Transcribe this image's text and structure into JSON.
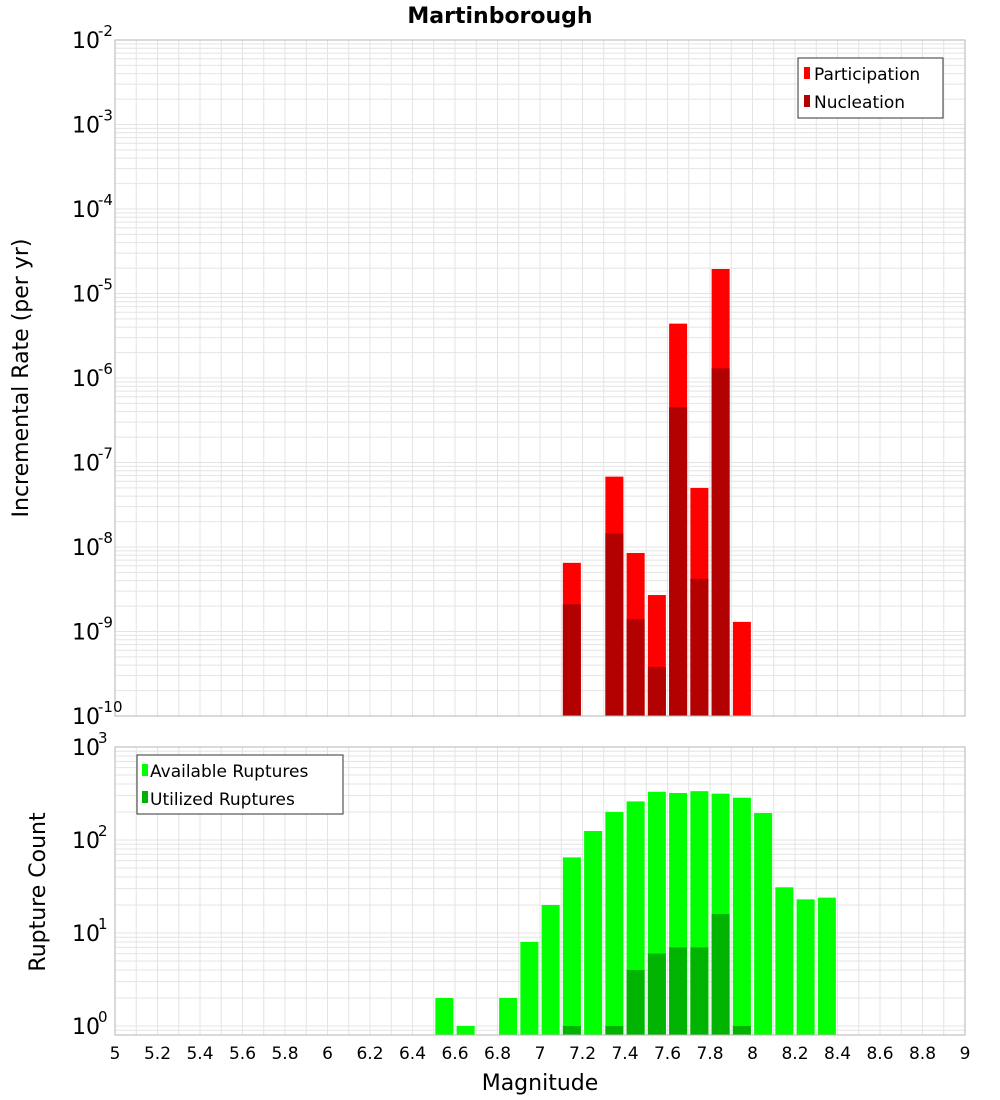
{
  "title": "Martinborough",
  "colors": {
    "participation": "#ff0000",
    "nucleation": "#b30000",
    "available": "#00ff00",
    "utilized": "#00b300",
    "grid": "#e4e4e4",
    "frame": "#b4b4b4"
  },
  "chart_data": [
    {
      "type": "bar",
      "ylabel": "Incremental Rate (per yr)",
      "yscale": "log",
      "ylim": [
        1e-10,
        0.01
      ],
      "xlim": [
        5,
        9
      ],
      "grid": true,
      "legend_position": "top-right",
      "y_tick_labels": [
        {
          "base": "10",
          "exp": "-10"
        },
        {
          "base": "10",
          "exp": "-9"
        },
        {
          "base": "10",
          "exp": "-8"
        },
        {
          "base": "10",
          "exp": "-7"
        },
        {
          "base": "10",
          "exp": "-6"
        },
        {
          "base": "10",
          "exp": "-5"
        },
        {
          "base": "10",
          "exp": "-4"
        },
        {
          "base": "10",
          "exp": "-3"
        },
        {
          "base": "10",
          "exp": "-2"
        }
      ],
      "series": [
        {
          "name": "Participation",
          "color": "#ff0000",
          "points": [
            [
              7.15,
              6.5e-09
            ],
            [
              7.35,
              6.8e-08
            ],
            [
              7.45,
              8.5e-09
            ],
            [
              7.55,
              2.7e-09
            ],
            [
              7.65,
              4.4e-06
            ],
            [
              7.75,
              5e-08
            ],
            [
              7.85,
              1.95e-05
            ],
            [
              7.95,
              1.3e-09
            ]
          ]
        },
        {
          "name": "Nucleation",
          "color": "#b30000",
          "points": [
            [
              7.15,
              2.1e-09
            ],
            [
              7.35,
              1.45e-08
            ],
            [
              7.45,
              1.4e-09
            ],
            [
              7.55,
              3.8e-10
            ],
            [
              7.65,
              4.5e-07
            ],
            [
              7.75,
              4.2e-09
            ],
            [
              7.85,
              1.3e-06
            ]
          ]
        }
      ]
    },
    {
      "type": "bar",
      "xlabel": "Magnitude",
      "ylabel": "Rupture Count",
      "yscale": "log",
      "ylim": [
        0.8,
        1000
      ],
      "xlim": [
        5,
        9
      ],
      "grid": true,
      "legend_position": "top-left",
      "x_ticks": [
        "5",
        "5.2",
        "5.4",
        "5.6",
        "5.8",
        "6",
        "6.2",
        "6.4",
        "6.6",
        "6.8",
        "7",
        "7.2",
        "7.4",
        "7.6",
        "7.8",
        "8",
        "8.2",
        "8.4",
        "8.6",
        "8.8",
        "9"
      ],
      "y_tick_labels": [
        {
          "base": "10",
          "exp": "0"
        },
        {
          "base": "10",
          "exp": "1"
        },
        {
          "base": "10",
          "exp": "2"
        },
        {
          "base": "10",
          "exp": "3"
        }
      ],
      "series": [
        {
          "name": "Available Ruptures",
          "color": "#00ff00",
          "points": [
            [
              6.55,
              2
            ],
            [
              6.65,
              1
            ],
            [
              6.85,
              2
            ],
            [
              6.95,
              8
            ],
            [
              7.05,
              20
            ],
            [
              7.15,
              65
            ],
            [
              7.25,
              125
            ],
            [
              7.35,
              200
            ],
            [
              7.45,
              260
            ],
            [
              7.55,
              330
            ],
            [
              7.65,
              320
            ],
            [
              7.75,
              335
            ],
            [
              7.85,
              315
            ],
            [
              7.95,
              285
            ],
            [
              8.05,
              195
            ],
            [
              8.15,
              31
            ],
            [
              8.25,
              23
            ],
            [
              8.35,
              24
            ]
          ]
        },
        {
          "name": "Utilized Ruptures",
          "color": "#00b300",
          "points": [
            [
              7.15,
              1
            ],
            [
              7.35,
              1
            ],
            [
              7.45,
              4
            ],
            [
              7.55,
              6
            ],
            [
              7.65,
              7
            ],
            [
              7.75,
              7
            ],
            [
              7.85,
              16
            ],
            [
              7.95,
              1
            ]
          ]
        }
      ]
    }
  ]
}
